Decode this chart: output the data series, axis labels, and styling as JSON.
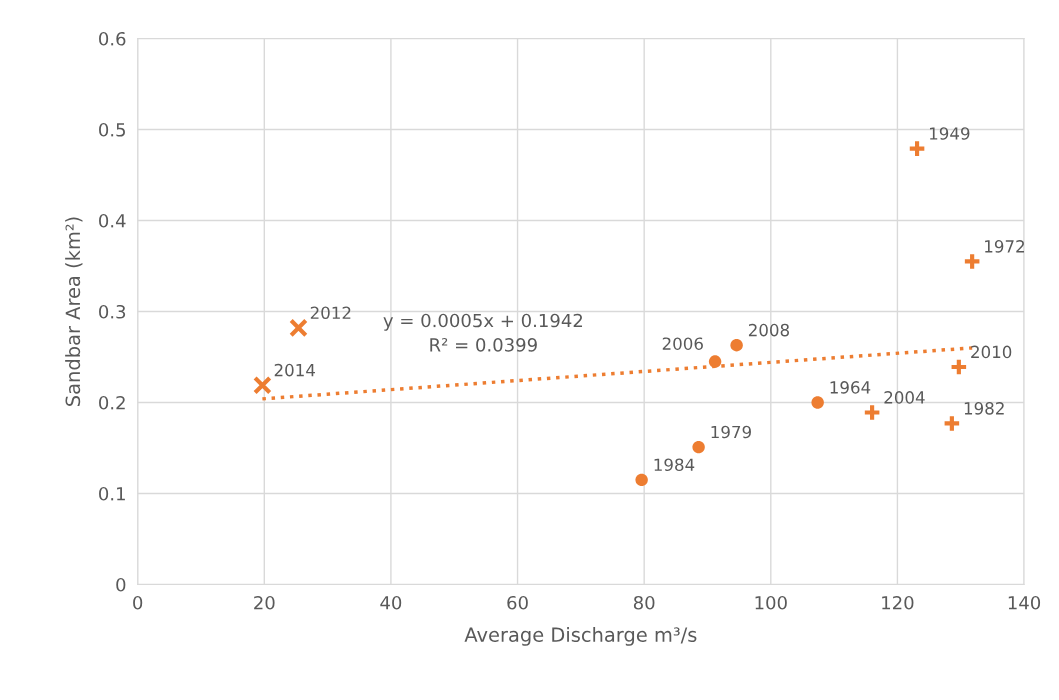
{
  "chart_data": {
    "type": "scatter",
    "xlabel": "Average Discharge m³/s",
    "ylabel": "Sandbar Area (km²)",
    "xlim": [
      0,
      140
    ],
    "xticks": [
      0,
      20,
      40,
      60,
      80,
      100,
      120,
      140
    ],
    "ylim": [
      0,
      0.6
    ],
    "yticks": [
      {
        "value": 0,
        "label": "0"
      },
      0.1,
      0.2,
      0.3,
      0.4,
      0.5,
      0.6
    ],
    "grid": true,
    "legend": false,
    "series": [
      {
        "marker": "cross",
        "color": "#ed7d31",
        "x": [
          19.7,
          25.4
        ],
        "values": [
          0.219,
          0.282
        ]
      },
      {
        "marker": "circle",
        "color": "#ed7d31",
        "x": [
          79.6,
          88.6,
          91.2,
          94.6,
          107.4
        ],
        "values": [
          0.115,
          0.151,
          0.245,
          0.263,
          0.2
        ]
      },
      {
        "marker": "plus",
        "color": "#ed7d31",
        "x": [
          123.1,
          131.8,
          129.7,
          116.0,
          128.6
        ],
        "values": [
          0.479,
          0.355,
          0.239,
          0.189,
          0.177
        ]
      },
      {
        "type": "line",
        "line_style": "dotted",
        "color": "#ed7d31",
        "x": [
          19.7,
          131.8
        ],
        "values": [
          0.204,
          0.26
        ]
      }
    ],
    "annotations": [
      {
        "text": "2014",
        "x": 19.7,
        "y": 0.219
      },
      {
        "text": "2012",
        "x": 25.4,
        "y": 0.282
      },
      {
        "text": "1984",
        "x": 79.6,
        "y": 0.115
      },
      {
        "text": "1979",
        "x": 88.6,
        "y": 0.151
      },
      {
        "text": "2006",
        "x": 91.2,
        "y": 0.245
      },
      {
        "text": "2008",
        "x": 94.6,
        "y": 0.263
      },
      {
        "text": "1964",
        "x": 107.4,
        "y": 0.2
      },
      {
        "text": "1949",
        "x": 123.1,
        "y": 0.479
      },
      {
        "text": "1972",
        "x": 131.8,
        "y": 0.355
      },
      {
        "text": "2010",
        "x": 129.7,
        "y": 0.239
      },
      {
        "text": "2004",
        "x": 116.0,
        "y": 0.189
      },
      {
        "text": "1982",
        "x": 128.6,
        "y": 0.177
      },
      "y = 0.0005x + 0.1942\nR² = 0.0399"
    ]
  }
}
